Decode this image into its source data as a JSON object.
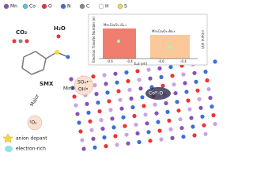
{
  "legend": {
    "items": [
      "Mn",
      "Co",
      "O",
      "N",
      "C",
      "H",
      "S"
    ]
  },
  "molecule": {
    "co2": "CO₂",
    "h2o": "H₂O",
    "smx": "SMX",
    "minor": "Minor",
    "major": "Major",
    "sulfate": "SO₄•⁻",
    "hydroxyl": "OH•",
    "singlet": "¹O₂",
    "site": "Coᴵᴵᴵ-O"
  },
  "inset": {
    "bar_left": "Mn₁Co₂O₃.₅S₀.₅",
    "bar_right": "Mn₁Co₂O₃.₅N₀.₅",
    "x_label": "Eₐd (eV)",
    "y_label": "Electron Transfer Number (e)",
    "y2_label": "d-band (eV)",
    "x_ticks": [
      "-0.6",
      "-0.4",
      "-0.6",
      "-0.4"
    ]
  },
  "key": {
    "anion": "anion dopant",
    "electron": "electron-rich"
  }
}
